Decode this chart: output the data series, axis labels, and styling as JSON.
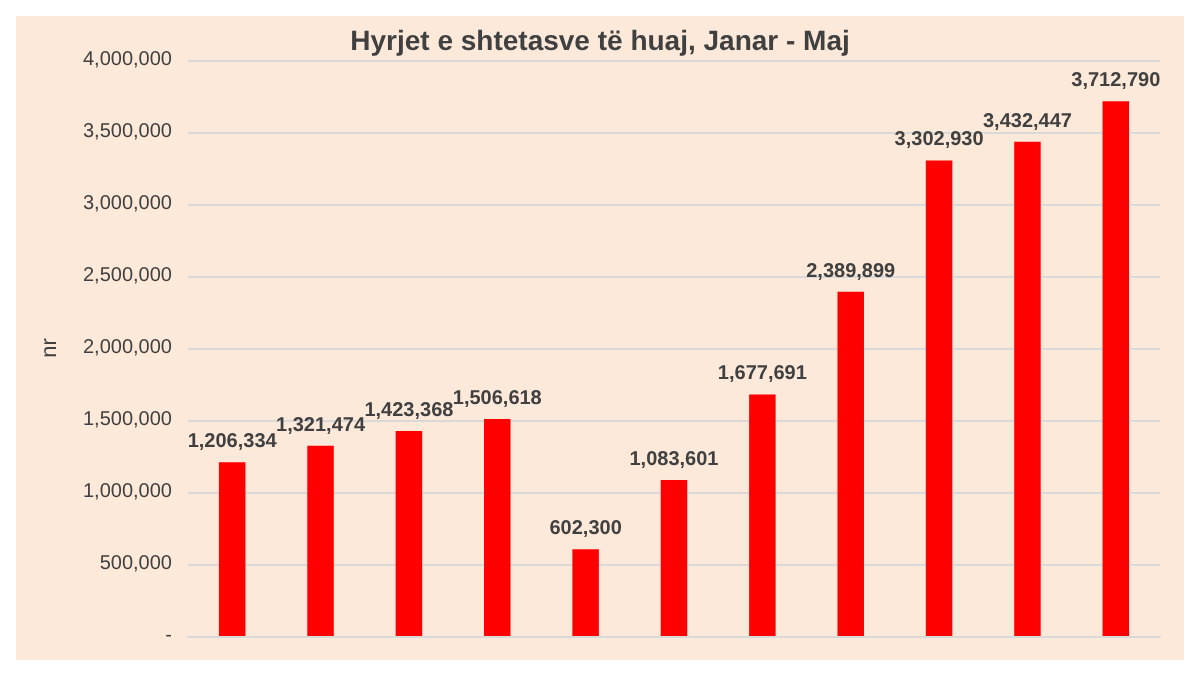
{
  "chart_data": {
    "type": "bar",
    "title": "Hyrjet e shtetasve të huaj, Janar - Maj",
    "ylabel": "nr",
    "categories": [
      null,
      null,
      null,
      null,
      null,
      null,
      null,
      null,
      null,
      null,
      null
    ],
    "values": [
      1206334,
      1321474,
      1423368,
      1506618,
      602300,
      1083601,
      1677691,
      2389899,
      3302930,
      3432447,
      3712790
    ],
    "value_labels": [
      "1,206,334",
      "1,321,474",
      "1,423,368",
      "1,506,618",
      "602,300",
      "1,083,601",
      "1,677,691",
      "2,389,899",
      "3,302,930",
      "3,432,447",
      "3,712,790"
    ],
    "color": "#ff0000",
    "grid": "y",
    "ylim": [
      0,
      4000000
    ],
    "yticks": [
      {
        "value": 0,
        "label": "-"
      },
      {
        "value": 500000,
        "label": "500,000"
      },
      {
        "value": 1000000,
        "label": "1,000,000"
      },
      {
        "value": 1500000,
        "label": "1,500,000"
      },
      {
        "value": 2000000,
        "label": "2,000,000"
      },
      {
        "value": 2500000,
        "label": "2,500,000"
      },
      {
        "value": 3000000,
        "label": "3,000,000"
      },
      {
        "value": 3500000,
        "label": "3,500,000"
      },
      {
        "value": 4000000,
        "label": "4,000,000"
      }
    ]
  }
}
